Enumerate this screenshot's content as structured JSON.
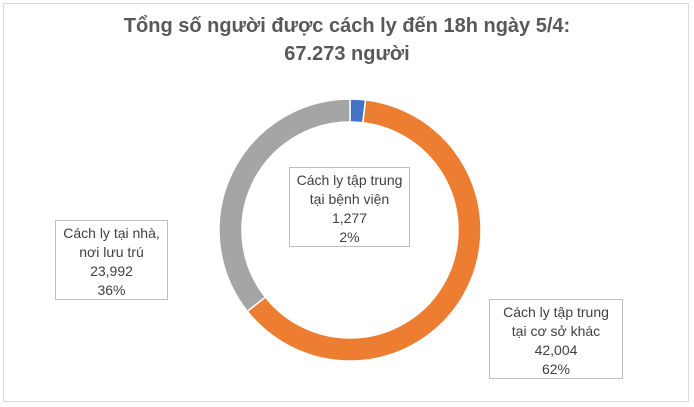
{
  "chart_data": {
    "type": "pie",
    "title_line1": "Tổng số người được cách ly đến 18h ngày 5/4:",
    "title_line2": "67.273 người",
    "slices": [
      {
        "lines": [
          "Cách ly tập trung",
          "tại bệnh viện"
        ],
        "value": 1277,
        "value_label": "1,277",
        "percent_label": "2%",
        "color": "#4472c4"
      },
      {
        "lines": [
          "Cách ly tập trung",
          "tại cơ sở khác"
        ],
        "value": 42004,
        "value_label": "42,004",
        "percent_label": "62%",
        "color": "#ed7d31"
      },
      {
        "lines": [
          "Cách ly tại nhà,",
          "nơi lưu trú"
        ],
        "value": 23992,
        "value_label": "23,992",
        "percent_label": "36%",
        "color": "#a5a5a5"
      }
    ]
  }
}
